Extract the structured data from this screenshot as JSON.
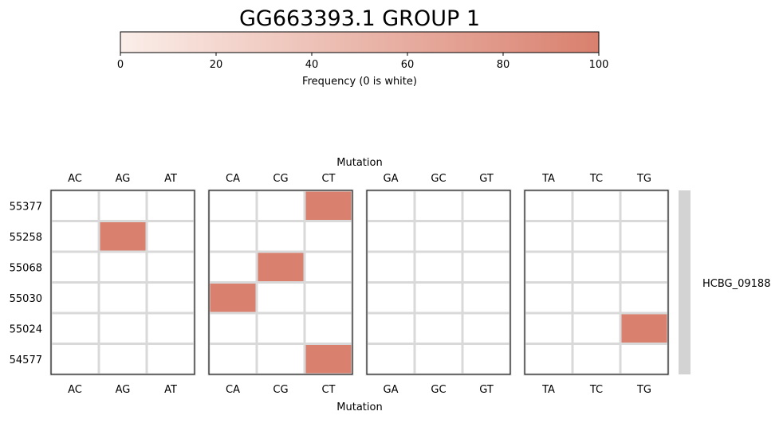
{
  "chart_data": {
    "type": "heatmap",
    "title": "GG663393.1 GROUP 1",
    "colorbar": {
      "label": "Frequency (0 is white)",
      "range": [
        0,
        100
      ],
      "ticks": [
        0,
        20,
        40,
        60,
        80,
        100
      ],
      "color_low": "#fbeee9",
      "color_high": "#d9806e"
    },
    "xlabel": "Mutation",
    "panels": [
      [
        "AC",
        "AG",
        "AT"
      ],
      [
        "CA",
        "CG",
        "CT"
      ],
      [
        "GA",
        "GC",
        "GT"
      ],
      [
        "TA",
        "TC",
        "TG"
      ]
    ],
    "rows": [
      "55377",
      "55258",
      "55068",
      "55030",
      "55024",
      "54577"
    ],
    "row_group": "HCBG_09188",
    "cells": [
      {
        "row": "55377",
        "col": "CT",
        "value": 100
      },
      {
        "row": "55258",
        "col": "AG",
        "value": 100
      },
      {
        "row": "55068",
        "col": "CG",
        "value": 100
      },
      {
        "row": "55030",
        "col": "CA",
        "value": 100
      },
      {
        "row": "55024",
        "col": "TG",
        "value": 100
      },
      {
        "row": "54577",
        "col": "CT",
        "value": 100
      }
    ],
    "grid_color": "#d9d9d9",
    "row_group_color": "#d3d3d3"
  }
}
